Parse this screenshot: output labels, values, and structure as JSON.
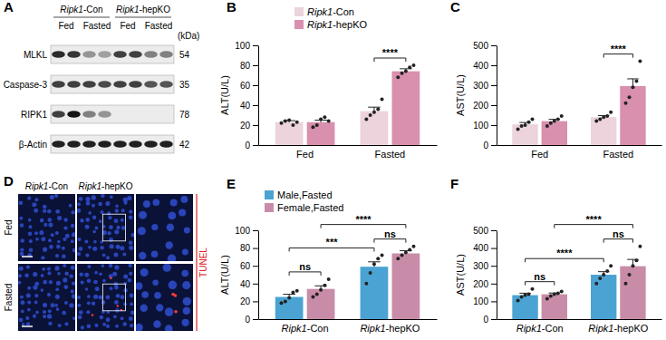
{
  "chart_data": [
    {
      "type": "blot",
      "panel": "A",
      "unit_label": "(kDa)",
      "groups": [
        {
          "name": "Ripk1-Con",
          "conditions": [
            "Fed",
            "Fasted"
          ]
        },
        {
          "name": "Ripk1-hepKO",
          "conditions": [
            "Fed",
            "Fasted"
          ]
        }
      ],
      "rows": [
        {
          "name": "MLKL",
          "kda": 54,
          "intensities": [
            0.9,
            0.85,
            0.4,
            0.35,
            0.8,
            0.8,
            0.5,
            0.5
          ]
        },
        {
          "name": "Caspase-3",
          "kda": 35,
          "intensities": [
            0.8,
            0.8,
            0.8,
            0.75,
            0.8,
            0.8,
            0.7,
            0.7
          ]
        },
        {
          "name": "RIPK1",
          "kda": 78,
          "intensities": [
            0.8,
            1.0,
            0.5,
            0.4,
            0,
            0,
            0,
            0
          ]
        },
        {
          "name": "β-Actin",
          "kda": 42,
          "intensities": [
            0.95,
            0.95,
            0.95,
            0.95,
            0.95,
            0.95,
            0.95,
            0.95
          ]
        }
      ]
    },
    {
      "type": "bar",
      "panel": "B",
      "y_label": "ALT(U/L)",
      "categories": [
        "Fed",
        "Fasted"
      ],
      "series": [
        {
          "name": "Ripk1-Con",
          "color": "#ecd3dc",
          "values": [
            23,
            34
          ],
          "errors": [
            1.5,
            4
          ],
          "points": [
            [
              22,
              24,
              25,
              20,
              23
            ],
            [
              26,
              30,
              33,
              36,
              46
            ]
          ]
        },
        {
          "name": "Ripk1-hepKO",
          "color": "#d98fae",
          "values": [
            23,
            74
          ],
          "errors": [
            2,
            2.5
          ],
          "points": [
            [
              18,
              20,
              26,
              28,
              24
            ],
            [
              68,
              72,
              74,
              78,
              80
            ]
          ]
        }
      ],
      "ylim": [
        0,
        100
      ],
      "yticks": [
        0,
        20,
        40,
        60,
        80,
        100
      ],
      "legend": "top",
      "annotations": [
        {
          "text": "****",
          "from": {
            "series": 0,
            "category": 1
          },
          "to": {
            "series": 1,
            "category": 1
          }
        }
      ]
    },
    {
      "type": "bar",
      "panel": "C",
      "y_label": "AST(U/L)",
      "categories": [
        "Fed",
        "Fasted"
      ],
      "series": [
        {
          "name": "Ripk1-Con",
          "color": "#ecd3dc",
          "values": [
            104,
            140
          ],
          "errors": [
            9,
            8
          ],
          "points": [
            [
              80,
              95,
              100,
              115,
              130
            ],
            [
              120,
              130,
              140,
              145,
              165
            ]
          ]
        },
        {
          "name": "Ripk1-hepKO",
          "color": "#d98fae",
          "values": [
            120,
            296
          ],
          "errors": [
            9,
            36
          ],
          "points": [
            [
              95,
              110,
              120,
              130,
              145
            ],
            [
              210,
              240,
              290,
              320,
              420
            ]
          ]
        }
      ],
      "ylim": [
        0,
        500
      ],
      "yticks": [
        0,
        100,
        200,
        300,
        400,
        500
      ],
      "annotations": [
        {
          "text": "****",
          "from": {
            "series": 0,
            "category": 1
          },
          "to": {
            "series": 1,
            "category": 1
          }
        }
      ]
    },
    {
      "type": "image",
      "panel": "D",
      "columns": [
        "Ripk1-Con",
        "Ripk1-hepKO"
      ],
      "rows": [
        "Fed",
        "Fasted"
      ],
      "stain": "TUNEL"
    },
    {
      "type": "bar",
      "panel": "E",
      "y_label": "ALT(U/L)",
      "categories": [
        "Ripk1-Con",
        "Ripk1-hepKO"
      ],
      "series": [
        {
          "name": "Male,Fasted",
          "color": "#4aa3d3",
          "values": [
            25,
            59
          ],
          "errors": [
            3,
            5.5
          ],
          "points": [
            [
              18,
              20,
              24,
              30,
              32
            ],
            [
              40,
              52,
              62,
              68,
              72
            ]
          ]
        },
        {
          "name": "Female,Fasted",
          "color": "#c98ca8",
          "values": [
            34,
            74
          ],
          "errors": [
            3.5,
            3
          ],
          "points": [
            [
              25,
              28,
              33,
              38,
              45
            ],
            [
              68,
              72,
              75,
              78,
              82
            ]
          ]
        }
      ],
      "ylim": [
        0,
        100
      ],
      "yticks": [
        0,
        20,
        40,
        60,
        80,
        100
      ],
      "legend": "top-left",
      "annotations": [
        {
          "text": "ns",
          "from": {
            "series": 0,
            "category": 0
          },
          "to": {
            "series": 1,
            "category": 0
          }
        },
        {
          "text": "ns",
          "from": {
            "series": 0,
            "category": 1
          },
          "to": {
            "series": 1,
            "category": 1
          }
        },
        {
          "text": "***",
          "from": {
            "series": 0,
            "category": 0
          },
          "to": {
            "series": 0,
            "category": 1
          }
        },
        {
          "text": "****",
          "from": {
            "series": 1,
            "category": 0
          },
          "to": {
            "series": 1,
            "category": 1
          }
        }
      ]
    },
    {
      "type": "bar",
      "panel": "F",
      "y_label": "AST(U/L)",
      "categories": [
        "Ripk1-Con",
        "Ripk1-hepKO"
      ],
      "series": [
        {
          "name": "Male,Fasted",
          "color": "#4aa3d3",
          "values": [
            135,
            250
          ],
          "errors": [
            11,
            17
          ],
          "points": [
            [
              105,
              125,
              135,
              140,
              170
            ],
            [
              200,
              230,
              250,
              270,
              300
            ]
          ]
        },
        {
          "name": "Female,Fasted",
          "color": "#c98ca8",
          "values": [
            140,
            298
          ],
          "errors": [
            7,
            38
          ],
          "points": [
            [
              115,
              130,
              140,
              145,
              155
            ],
            [
              200,
              250,
              300,
              330,
              410
            ]
          ]
        }
      ],
      "ylim": [
        0,
        500
      ],
      "yticks": [
        0,
        100,
        200,
        300,
        400,
        500
      ],
      "annotations": [
        {
          "text": "ns",
          "from": {
            "series": 0,
            "category": 0
          },
          "to": {
            "series": 1,
            "category": 0
          }
        },
        {
          "text": "ns",
          "from": {
            "series": 0,
            "category": 1
          },
          "to": {
            "series": 1,
            "category": 1
          }
        },
        {
          "text": "****",
          "from": {
            "series": 0,
            "category": 0
          },
          "to": {
            "series": 0,
            "category": 1
          }
        },
        {
          "text": "****",
          "from": {
            "series": 1,
            "category": 0
          },
          "to": {
            "series": 1,
            "category": 1
          }
        }
      ]
    }
  ]
}
